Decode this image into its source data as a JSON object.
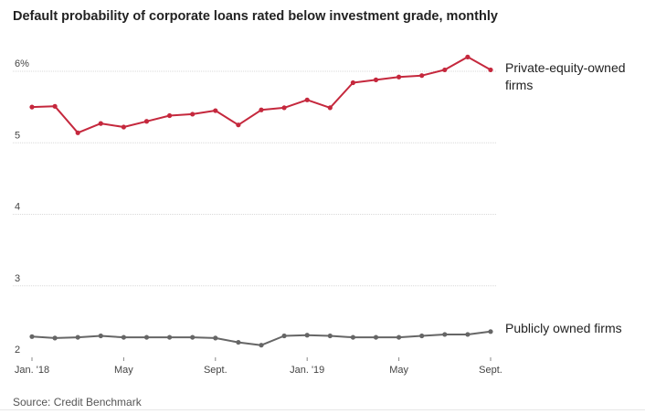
{
  "title": "Default probability of corporate loans rated below investment grade, monthly",
  "source": "Source: Credit Benchmark",
  "chart_data": {
    "type": "line",
    "title": "Default probability of corporate loans rated below investment grade, monthly",
    "xlabel": "",
    "ylabel": "",
    "ylim": [
      2,
      6
    ],
    "yticks": [
      "2",
      "3",
      "4",
      "5",
      "6%"
    ],
    "xtick_labels": [
      "Jan. '18",
      "May",
      "Sept.",
      "Jan. '19",
      "May",
      "Sept."
    ],
    "x": [
      "2018-01",
      "2018-02",
      "2018-03",
      "2018-04",
      "2018-05",
      "2018-06",
      "2018-07",
      "2018-08",
      "2018-09",
      "2018-10",
      "2018-11",
      "2018-12",
      "2019-01",
      "2019-02",
      "2019-03",
      "2019-04",
      "2019-05",
      "2019-06",
      "2019-07",
      "2019-08",
      "2019-09"
    ],
    "grid": true,
    "legend": "inline-right",
    "series": [
      {
        "name": "Private-equity-owned firms",
        "color": "#c5283d",
        "values": [
          5.5,
          5.51,
          5.14,
          5.27,
          5.22,
          5.3,
          5.38,
          5.4,
          5.45,
          5.25,
          5.46,
          5.49,
          5.6,
          5.49,
          5.84,
          5.88,
          5.92,
          5.94,
          6.02,
          6.2,
          6.02
        ]
      },
      {
        "name": "Publicly owned firms",
        "color": "#666666",
        "values": [
          2.29,
          2.27,
          2.28,
          2.3,
          2.28,
          2.28,
          2.28,
          2.28,
          2.27,
          2.21,
          2.17,
          2.3,
          2.31,
          2.3,
          2.28,
          2.28,
          2.28,
          2.3,
          2.32,
          2.32,
          2.36
        ]
      }
    ]
  }
}
